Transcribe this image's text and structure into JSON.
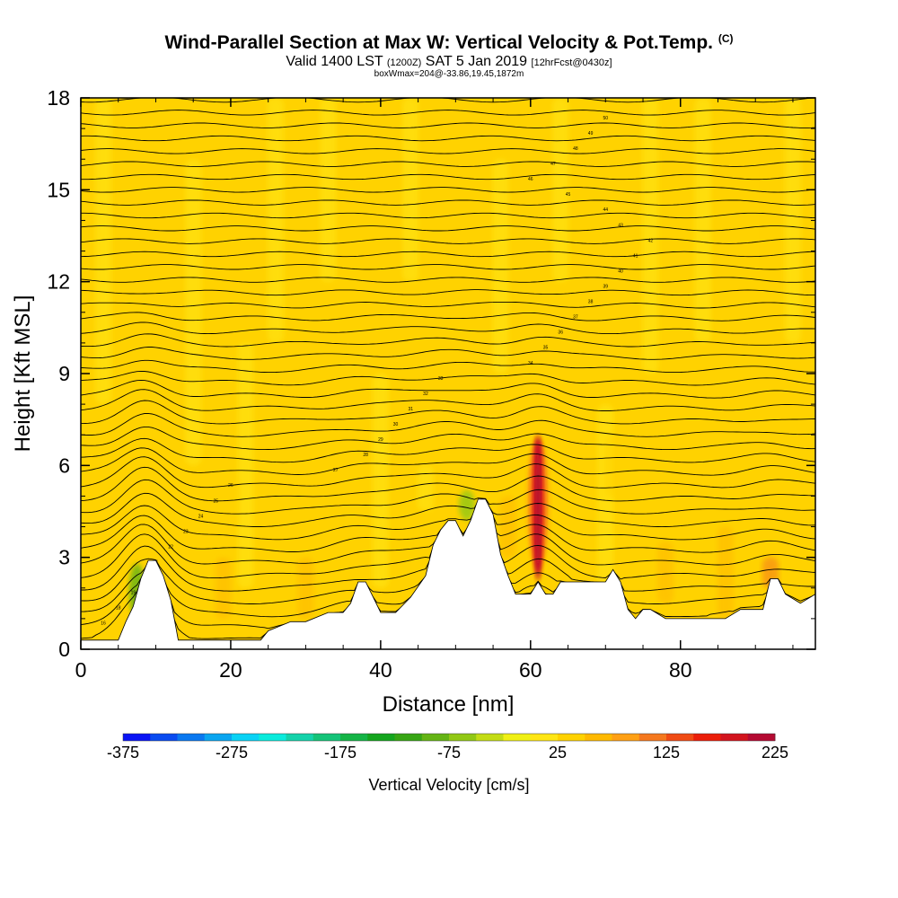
{
  "header": {
    "title": "Wind-Parallel Section at Max W: Vertical Velocity & Pot.Temp.",
    "copyright": "(C)",
    "valid_main": "Valid 1400 LST",
    "valid_utc": "(1200Z)",
    "valid_date": "SAT 5 Jan 2019",
    "forecast": "[12hrFcst@0430z]",
    "box_info": "boxWmax=204@-33.86,19.45,1872m"
  },
  "chart_data": {
    "type": "heatmap",
    "xlabel": "Distance [nm]",
    "ylabel": "Height [Kft MSL]",
    "xlim": [
      0,
      98
    ],
    "ylim": [
      0,
      18
    ],
    "xticks": [
      "0",
      "20",
      "40",
      "60",
      "80"
    ],
    "yticks": [
      "0",
      "3",
      "6",
      "9",
      "12",
      "15",
      "18"
    ],
    "colorbar": {
      "title": "Vertical Velocity [cm/s]",
      "tick_labels": [
        "-375",
        "-275",
        "-175",
        "-75",
        "25",
        "125",
        "225"
      ],
      "min": -375,
      "max": 225,
      "step": 25,
      "colors": [
        "#0a14f5",
        "#0a4bf0",
        "#0a78f0",
        "#0aa5f0",
        "#0ad2f5",
        "#0aebdc",
        "#14d2aa",
        "#14c378",
        "#14b446",
        "#14a51e",
        "#37a514",
        "#64b414",
        "#91c814",
        "#c3dc14",
        "#f0f014",
        "#ffe614",
        "#ffd200",
        "#ffb900",
        "#ffa014",
        "#f5781e",
        "#f04b14",
        "#eb1e0a",
        "#d2141e",
        "#b40a32"
      ]
    },
    "terrain": {
      "description_free": true,
      "x": [
        0,
        5,
        6,
        7,
        8,
        9,
        10,
        11,
        12,
        13,
        20,
        24,
        25,
        28,
        30,
        33,
        35,
        36,
        37,
        38,
        40,
        42,
        44,
        46,
        47,
        48,
        49,
        50,
        51,
        52,
        53,
        54,
        55,
        56,
        57,
        58,
        59,
        60,
        61,
        62,
        63,
        64,
        66,
        68,
        70,
        71,
        72,
        73,
        74,
        75,
        76,
        78,
        80,
        82,
        84,
        86,
        88,
        89,
        90,
        91,
        92,
        93,
        94,
        96,
        98
      ],
      "height": [
        0.3,
        0.3,
        0.9,
        1.4,
        2.3,
        2.9,
        2.9,
        2.4,
        1.6,
        0.3,
        0.3,
        0.3,
        0.6,
        0.9,
        0.9,
        1.2,
        1.2,
        1.5,
        2.2,
        2.2,
        1.2,
        1.2,
        1.7,
        2.4,
        3.4,
        3.9,
        4.2,
        4.2,
        3.7,
        4.2,
        4.9,
        4.9,
        4.4,
        3.1,
        2.4,
        1.8,
        1.8,
        1.8,
        2.2,
        1.8,
        1.8,
        2.2,
        2.2,
        2.2,
        2.2,
        2.6,
        2.2,
        1.3,
        1.0,
        1.3,
        1.3,
        1.0,
        1.0,
        1.0,
        1.0,
        1.0,
        1.3,
        1.3,
        1.3,
        1.3,
        2.3,
        2.3,
        1.8,
        1.5,
        1.8
      ]
    },
    "w_max_feature": {
      "x": 61,
      "z_bottom": 2.2,
      "z_top": 7.0,
      "peak_value": 204
    },
    "updraft_features": [
      {
        "x": 7.5,
        "z_bottom": 1.0,
        "z_top": 2.8,
        "value": -100
      },
      {
        "x": 51.5,
        "z_bottom": 4.2,
        "z_top": 5.2,
        "value": -75
      }
    ],
    "theta_contour_labels": [
      "16",
      "18",
      "19",
      "20",
      "21",
      "22",
      "23",
      "24",
      "25",
      "26",
      "27",
      "28",
      "29",
      "30",
      "31",
      "32",
      "33",
      "34",
      "35",
      "36",
      "37",
      "38",
      "39",
      "40",
      "41",
      "42",
      "43",
      "44",
      "45",
      "46",
      "47",
      "48",
      "49",
      "50",
      "51"
    ]
  }
}
